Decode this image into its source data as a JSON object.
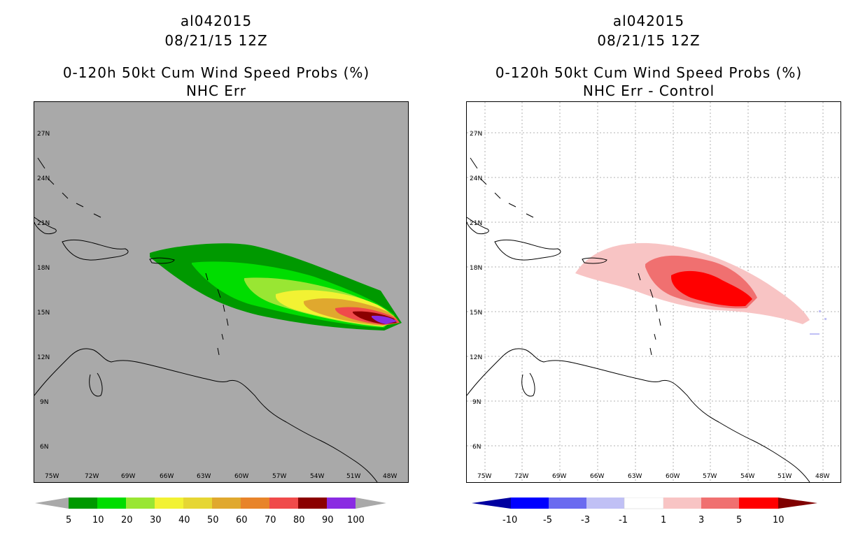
{
  "left_panel": {
    "storm_id": "al042015",
    "datetime": "08/21/15 12Z",
    "product": "0-120h 50kt Cum Wind Speed Probs (%)",
    "subtitle": "NHC Err",
    "background": "#a9a9a9",
    "colorbar": {
      "labels": [
        "5",
        "10",
        "20",
        "30",
        "40",
        "50",
        "60",
        "70",
        "80",
        "90",
        "100"
      ],
      "colors": [
        "#009900",
        "#00dd00",
        "#99e633",
        "#f2f233",
        "#e6d633",
        "#e0a82e",
        "#e8842a",
        "#f04a4a",
        "#8b0000",
        "#8a2be2"
      ]
    }
  },
  "right_panel": {
    "storm_id": "al042015",
    "datetime": "08/21/15 12Z",
    "product": "0-120h 50kt Cum Wind Speed Probs (%)",
    "subtitle": "NHC Err - Control",
    "background": "#ffffff",
    "colorbar": {
      "labels": [
        "-10",
        "-5",
        "-3",
        "-1",
        "1",
        "3",
        "5",
        "10"
      ],
      "colors": [
        "#0000a0",
        "#0000ff",
        "#6a6af0",
        "#c0c0f5",
        "#ffffff",
        "#f8c4c4",
        "#f07070",
        "#ff0000",
        "#800000"
      ]
    }
  },
  "axes": {
    "lon_labels": [
      "75W",
      "72W",
      "69W",
      "66W",
      "63W",
      "60W",
      "57W",
      "54W",
      "51W",
      "48W"
    ],
    "lat_labels": [
      "27N",
      "24N",
      "21N",
      "18N",
      "15N",
      "12N",
      "9N",
      "6N"
    ]
  }
}
